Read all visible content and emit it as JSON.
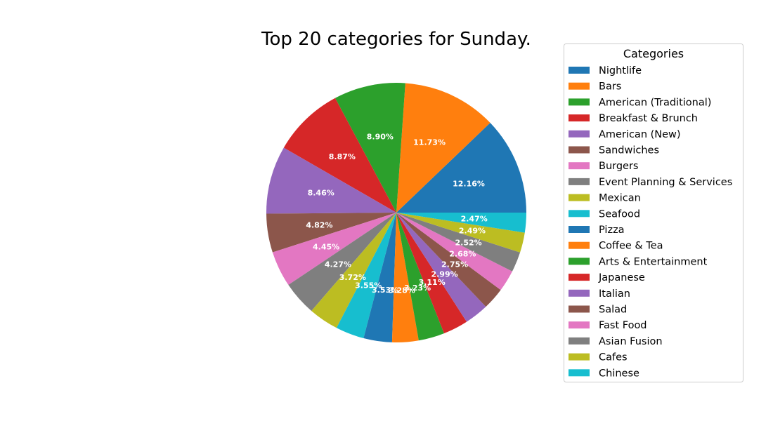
{
  "chart_data": {
    "type": "pie",
    "title": "Top 20 categories for Sunday.",
    "legend_title": "Categories",
    "legend_position": "right",
    "start_angle_deg": 0,
    "direction": "counterclockwise",
    "slices": [
      {
        "label": "Nightlife",
        "value": 12.16,
        "pct_text": "12.16%",
        "color": "#1f77b4"
      },
      {
        "label": "Bars",
        "value": 11.73,
        "pct_text": "11.73%",
        "color": "#ff7f0e"
      },
      {
        "label": "American (Traditional)",
        "value": 8.9,
        "pct_text": "8.90%",
        "color": "#2ca02c"
      },
      {
        "label": "Breakfast & Brunch",
        "value": 8.87,
        "pct_text": "8.87%",
        "color": "#d62728"
      },
      {
        "label": "American (New)",
        "value": 8.46,
        "pct_text": "8.46%",
        "color": "#9467bd"
      },
      {
        "label": "Sandwiches",
        "value": 4.82,
        "pct_text": "4.82%",
        "color": "#8c564b"
      },
      {
        "label": "Burgers",
        "value": 4.45,
        "pct_text": "4.45%",
        "color": "#e377c2"
      },
      {
        "label": "Event Planning & Services",
        "value": 4.27,
        "pct_text": "4.27%",
        "color": "#7f7f7f"
      },
      {
        "label": "Mexican",
        "value": 3.72,
        "pct_text": "3.72%",
        "color": "#bcbd22"
      },
      {
        "label": "Seafood",
        "value": 3.55,
        "pct_text": "3.55%",
        "color": "#17becf"
      },
      {
        "label": "Pizza",
        "value": 3.53,
        "pct_text": "3.53%",
        "color": "#1f77b4"
      },
      {
        "label": "Coffee & Tea",
        "value": 3.28,
        "pct_text": "3.28%",
        "color": "#ff7f0e"
      },
      {
        "label": "Arts & Entertainment",
        "value": 3.23,
        "pct_text": "3.23%",
        "color": "#2ca02c"
      },
      {
        "label": "Japanese",
        "value": 3.11,
        "pct_text": "3.11%",
        "color": "#d62728"
      },
      {
        "label": "Italian",
        "value": 2.99,
        "pct_text": "2.99%",
        "color": "#9467bd"
      },
      {
        "label": "Salad",
        "value": 2.75,
        "pct_text": "2.75%",
        "color": "#8c564b"
      },
      {
        "label": "Fast Food",
        "value": 2.68,
        "pct_text": "2.68%",
        "color": "#e377c2"
      },
      {
        "label": "Asian Fusion",
        "value": 2.52,
        "pct_text": "2.52%",
        "color": "#7f7f7f"
      },
      {
        "label": "Cafes",
        "value": 2.49,
        "pct_text": "2.49%",
        "color": "#bcbd22"
      },
      {
        "label": "Chinese",
        "value": 2.47,
        "pct_text": "2.47%",
        "color": "#17becf"
      }
    ]
  }
}
